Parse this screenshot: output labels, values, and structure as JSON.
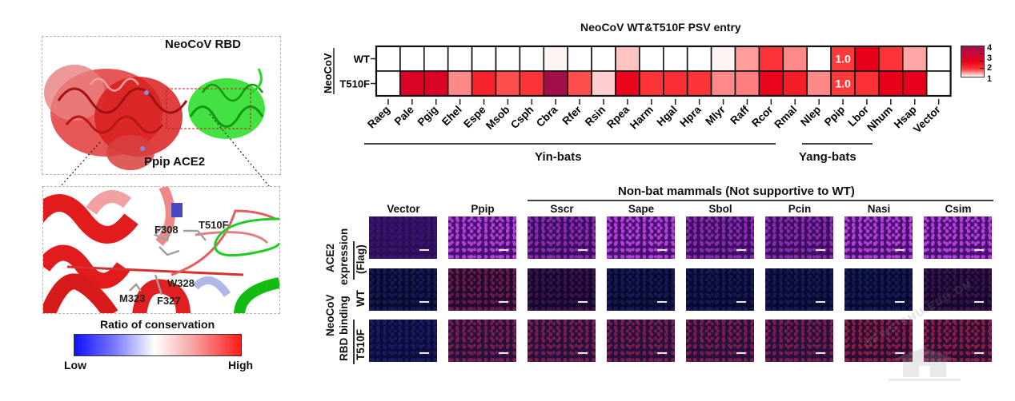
{
  "structure_panel": {
    "top_labels": {
      "rbd": "NeoCoV RBD",
      "ace2": "Ppip ACE2"
    },
    "residues": [
      "F308",
      "T510F",
      "W328",
      "M323",
      "F327"
    ],
    "conservation_legend": {
      "title": "Ratio of conservation",
      "low": "Low",
      "high": "High",
      "colors": {
        "low": "#1010ff",
        "mid": "#ffffff",
        "high": "#ff1a1a"
      }
    }
  },
  "chart_data": {
    "type": "heatmap",
    "title": "NeoCoV WT&T510F PSV entry",
    "row_group_label": "NeoCoV",
    "rows": [
      "WT",
      "T510F"
    ],
    "columns": [
      "Raeg",
      "Pale",
      "Pgig",
      "Ehel",
      "Espe",
      "Msob",
      "Csph",
      "Cbra",
      "Rfer",
      "Rsin",
      "Rpea",
      "Harm",
      "Hgal",
      "Hpra",
      "Mlyr",
      "Raff",
      "Rcor",
      "Rmal",
      "Nlep",
      "Ppip",
      "Lbor",
      "Nhum",
      "Hsap",
      "Vector"
    ],
    "values": [
      [
        0,
        0,
        0,
        0,
        0,
        0,
        0,
        0.05,
        0,
        0,
        0.3,
        0,
        0,
        0,
        0.05,
        0.5,
        1.1,
        0.6,
        0,
        1.0,
        2.0,
        1.1,
        0.45,
        0
      ],
      [
        0,
        2.4,
        2.4,
        0.6,
        1.4,
        0.9,
        1.1,
        3.8,
        0.9,
        0.25,
        1.9,
        1.1,
        1.2,
        1.1,
        0.6,
        0.65,
        1.9,
        1.5,
        0.6,
        1.0,
        1.15,
        2.0,
        2.1,
        0
      ]
    ],
    "annotations": [
      {
        "row": "WT",
        "column": "Ppip",
        "text": "1.0"
      },
      {
        "row": "T510F",
        "column": "Ppip",
        "text": "1.0"
      }
    ],
    "column_groups": [
      {
        "label": "Yin-bats",
        "from": "Raeg",
        "to": "Rmal"
      },
      {
        "label": "Yang-bats",
        "from": "Nlep",
        "to": "Lbor"
      }
    ],
    "colorbar": {
      "range": [
        0,
        4
      ],
      "ticks": [
        "1",
        "2",
        "3",
        "4"
      ],
      "colors": [
        "#ffffff",
        "#ff3a3a",
        "#e8001a",
        "#c80838",
        "#98104e"
      ]
    }
  },
  "microscopy": {
    "group_title": "Non-bat mammals (Not supportive to WT)",
    "columns": [
      "Vector",
      "Ppip",
      "Sscr",
      "Sape",
      "Sbol",
      "Pcin",
      "Nasi",
      "Csim"
    ],
    "row_groups": [
      {
        "label_line1": "ACE2",
        "label_line2": "expression",
        "sub_label": "(Flag)"
      },
      {
        "label_line1": "NeoCoV",
        "label_line2": "RBD binding",
        "sub_labels": [
          "WT",
          "T510F"
        ]
      }
    ],
    "rows": [
      {
        "name": "ACE2 expression (Flag)",
        "signal": [
          "very-low",
          "high",
          "medium",
          "high",
          "medium",
          "medium",
          "high",
          "high"
        ]
      },
      {
        "name": "RBD binding WT",
        "signal": [
          "none",
          "medium",
          "low",
          "none",
          "none",
          "none",
          "none",
          "low"
        ]
      },
      {
        "name": "RBD binding T510F",
        "signal": [
          "none",
          "medium",
          "medium",
          "medium",
          "medium",
          "medium",
          "high",
          "high"
        ]
      }
    ]
  },
  "watermark": {
    "text": "NEWS.SHU.EDU.CN"
  }
}
